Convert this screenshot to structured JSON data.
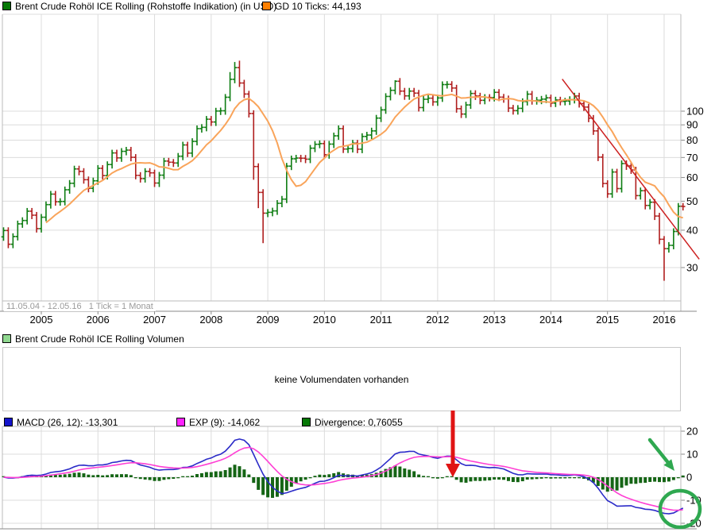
{
  "header": {
    "title": "Brent Crude Rohöl ICE Rolling (Rohstoffe Indikation) (in USD)",
    "gd_label": "GD 10 Ticks: 44,193"
  },
  "footer_note": "11.05.04 - 12.05.16   1 Tick = 1 Monat",
  "volume": {
    "title": "Brent Crude Rohöl ICE Rolling Volumen",
    "empty_text": "keine Volumendaten vorhanden"
  },
  "macd_legend": {
    "macd_label": "MACD (26, 12): -13,301",
    "exp_label": "EXP (9): -14,062",
    "div_label": "Divergence: 0,76055"
  },
  "colors": {
    "up": "#0e7d12",
    "down": "#b01e1e",
    "gd_line": "#f9a45a",
    "macd_line": "#2b2bc8",
    "exp_line": "#ff3fd4",
    "divergence": "#156515",
    "annotation_red": "#e01414",
    "annotation_green": "#2fa850",
    "trendline": "#cc2020",
    "grid": "#dcdcdc",
    "border": "#bbbbbb",
    "axis": "#8a8a8a",
    "swatch_title": "#067806",
    "swatch_gd": "#ff8000",
    "swatch_volume": "#90d890",
    "swatch_macd": "#1414cc",
    "swatch_exp": "#ff22ff",
    "swatch_div": "#067806"
  },
  "chart_data": [
    {
      "type": "bar",
      "subtype": "ohlc-bars-monthly",
      "title": "Brent Crude Rohöl ICE Rolling (in USD)",
      "start": "2004-05",
      "end": "2016-05",
      "interval": "1 Monat",
      "scale": "log",
      "years": [
        2005,
        2006,
        2007,
        2008,
        2009,
        2010,
        2011,
        2012,
        2013,
        2014,
        2015,
        2016
      ],
      "price_ticks": [
        100,
        90,
        80,
        70,
        60,
        50,
        40,
        30
      ],
      "first_open": 38.0,
      "closes": [
        39.9,
        35.9,
        38.1,
        42.0,
        43.1,
        46.3,
        44.9,
        40.5,
        44.2,
        48.7,
        52.8,
        49.8,
        49.9,
        54.6,
        57.4,
        64.1,
        62.9,
        59.0,
        55.2,
        58.5,
        64.4,
        60.9,
        66.3,
        72.5,
        69.8,
        73.4,
        74.1,
        70.1,
        61.0,
        59.5,
        62.9,
        62.2,
        57.5,
        61.1,
        68.1,
        67.5,
        67.1,
        70.7,
        77.1,
        72.4,
        79.2,
        87.4,
        88.3,
        94.0,
        92.0,
        100.1,
        100.3,
        111.3,
        127.8,
        139.8,
        124.2,
        114.1,
        98.2,
        65.3,
        53.5,
        45.6,
        45.9,
        46.4,
        49.2,
        50.8,
        65.5,
        69.3,
        69.7,
        69.6,
        69.1,
        75.2,
        77.5,
        77.9,
        71.5,
        77.6,
        82.7,
        87.4,
        74.7,
        75.0,
        78.2,
        74.6,
        82.3,
        83.2,
        85.9,
        94.8,
        101.0,
        112.0,
        117.4,
        125.9,
        116.7,
        112.5,
        116.7,
        114.9,
        102.8,
        109.6,
        110.5,
        107.4,
        110.7,
        122.7,
        122.9,
        119.5,
        101.9,
        97.8,
        104.9,
        114.6,
        112.4,
        108.7,
        111.2,
        111.1,
        115.6,
        111.4,
        110.0,
        102.4,
        100.4,
        102.2,
        107.7,
        114.0,
        108.4,
        108.8,
        109.7,
        110.8,
        106.4,
        109.0,
        107.8,
        108.1,
        109.4,
        112.4,
        106.0,
        103.2,
        94.7,
        85.9,
        70.2,
        57.3,
        52.9,
        62.6,
        55.1,
        66.8,
        65.6,
        63.6,
        52.2,
        54.2,
        48.4,
        49.6,
        44.6,
        37.3,
        34.7,
        35.6,
        39.6,
        48.1,
        48.0
      ],
      "high_overrides": {
        "48": 135.1,
        "49": 146.0,
        "50": 147.5,
        "83": 126.9
      },
      "low_overrides": {
        "53": 59.0,
        "54": 47.4,
        "55": 36.2,
        "139": 35.9,
        "140": 27.1
      },
      "gd_period": 10,
      "gd_current": 44.193,
      "trendline": {
        "from_year": 2014.2,
        "from_price": 128,
        "to_year": 2016.62,
        "to_price": 32
      }
    },
    {
      "type": "line",
      "subtype": "macd-indicator",
      "source": "closes of panel 1",
      "fast": 12,
      "slow": 26,
      "signal": 9,
      "y_ticks": [
        20,
        10,
        0,
        -10,
        -20
      ],
      "series": [
        "MACD",
        "EXP",
        "Divergence"
      ],
      "current": {
        "macd": -13.301,
        "exp": -14.062,
        "divergence": 0.76055
      }
    }
  ]
}
